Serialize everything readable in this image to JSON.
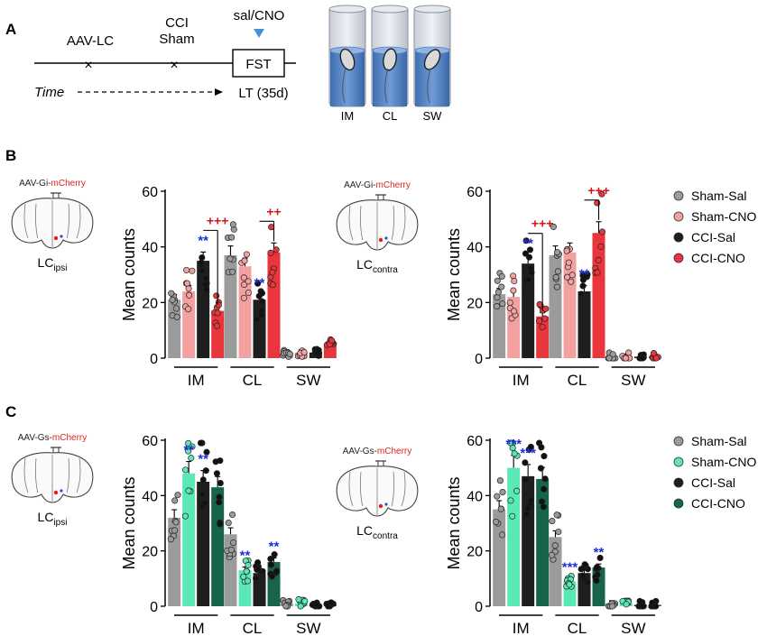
{
  "panels": {
    "a": "A",
    "b": "B",
    "c": "C"
  },
  "timeline": {
    "aav": "AAV-LC",
    "cci": "CCI",
    "sham": "Sham",
    "salcno": "sal/CNO",
    "fst": "FST",
    "time": "Time",
    "lt": "LT (35d)"
  },
  "cylinders": [
    "IM",
    "CL",
    "SW"
  ],
  "brains": {
    "gi": "AAV-Gi-",
    "gs": "AAV-Gs-",
    "mcherry": "mCherry",
    "lc": "LC",
    "ipsi": "ipsi",
    "contra": "contra"
  },
  "legend_b": [
    {
      "name": "Sham-Sal",
      "color": "#9b9b9b"
    },
    {
      "name": "Sham-CNO",
      "color": "#f2a0a0"
    },
    {
      "name": "CCI-Sal",
      "color": "#1e1e1e"
    },
    {
      "name": "CCI-CNO",
      "color": "#e8363c"
    }
  ],
  "legend_c": [
    {
      "name": "Sham-Sal",
      "color": "#9b9b9b"
    },
    {
      "name": "Sham-CNO",
      "color": "#5ae8b4"
    },
    {
      "name": "CCI-Sal",
      "color": "#1e1e1e"
    },
    {
      "name": "CCI-CNO",
      "color": "#16654a"
    }
  ],
  "chart_data": [
    {
      "type": "bar",
      "panel": "B-ipsi",
      "categories": [
        "IM",
        "CL",
        "SW"
      ],
      "ylabel": "Mean counts",
      "ylim": [
        0,
        60
      ],
      "yticks": [
        0,
        20,
        40,
        60
      ],
      "series": [
        {
          "name": "Sham-Sal",
          "values": [
            21,
            37,
            2
          ]
        },
        {
          "name": "Sham-CNO",
          "values": [
            24,
            33,
            2
          ]
        },
        {
          "name": "CCI-Sal",
          "values": [
            35,
            21,
            2
          ]
        },
        {
          "name": "CCI-CNO",
          "values": [
            17,
            38,
            5
          ]
        }
      ],
      "annotations": [
        {
          "text": "**",
          "category": "IM",
          "series": "CCI-Sal"
        },
        {
          "text": "**",
          "category": "CL",
          "series": "CCI-Sal"
        },
        {
          "text": "+++",
          "category": "IM",
          "series": "CCI-CNO"
        },
        {
          "text": "++",
          "category": "CL",
          "series": "CCI-CNO"
        }
      ]
    },
    {
      "type": "bar",
      "panel": "B-contra",
      "categories": [
        "IM",
        "CL",
        "SW"
      ],
      "ylabel": "Mean counts",
      "ylim": [
        0,
        60
      ],
      "yticks": [
        0,
        20,
        40,
        60
      ],
      "series": [
        {
          "name": "Sham-Sal",
          "values": [
            23,
            37,
            0.5
          ]
        },
        {
          "name": "Sham-CNO",
          "values": [
            22,
            38,
            0.5
          ]
        },
        {
          "name": "CCI-Sal",
          "values": [
            34,
            24,
            0.5
          ]
        },
        {
          "name": "CCI-CNO",
          "values": [
            15,
            45,
            0.5
          ]
        }
      ],
      "annotations": [
        {
          "text": "**",
          "category": "IM",
          "series": "CCI-Sal"
        },
        {
          "text": "**",
          "category": "CL",
          "series": "CCI-Sal"
        },
        {
          "text": "+++",
          "category": "IM",
          "series": "CCI-CNO"
        },
        {
          "text": "+++",
          "category": "CL",
          "series": "CCI-CNO"
        }
      ]
    },
    {
      "type": "bar",
      "panel": "C-ipsi",
      "categories": [
        "IM",
        "CL",
        "SW"
      ],
      "ylabel": "Mean counts",
      "ylim": [
        0,
        60
      ],
      "yticks": [
        0,
        20,
        40,
        60
      ],
      "series": [
        {
          "name": "Sham-Sal",
          "values": [
            32,
            26,
            1
          ]
        },
        {
          "name": "Sham-CNO",
          "values": [
            48,
            13,
            1
          ]
        },
        {
          "name": "CCI-Sal",
          "values": [
            45,
            12,
            0.5
          ]
        },
        {
          "name": "CCI-CNO",
          "values": [
            43,
            16,
            0.5
          ]
        }
      ],
      "annotations": [
        {
          "text": "**",
          "category": "IM",
          "series": "Sham-CNO"
        },
        {
          "text": "**",
          "category": "IM",
          "series": "CCI-Sal"
        },
        {
          "text": "**",
          "category": "CL",
          "series": "Sham-CNO"
        },
        {
          "text": "**",
          "category": "CL",
          "series": "CCI-CNO"
        }
      ]
    },
    {
      "type": "bar",
      "panel": "C-contra",
      "categories": [
        "IM",
        "CL",
        "SW"
      ],
      "ylabel": "Mean counts",
      "ylim": [
        0,
        60
      ],
      "yticks": [
        0,
        20,
        40,
        60
      ],
      "series": [
        {
          "name": "Sham-Sal",
          "values": [
            35,
            25,
            1
          ]
        },
        {
          "name": "Sham-CNO",
          "values": [
            50,
            9,
            1
          ]
        },
        {
          "name": "CCI-Sal",
          "values": [
            47,
            12,
            0.5
          ]
        },
        {
          "name": "CCI-CNO",
          "values": [
            46,
            14,
            0.5
          ]
        }
      ],
      "annotations": [
        {
          "text": "***",
          "category": "IM",
          "series": "Sham-CNO"
        },
        {
          "text": "***",
          "category": "IM",
          "series": "CCI-Sal"
        },
        {
          "text": "***",
          "category": "CL",
          "series": "Sham-CNO"
        },
        {
          "text": "**",
          "category": "CL",
          "series": "CCI-CNO"
        }
      ]
    }
  ]
}
